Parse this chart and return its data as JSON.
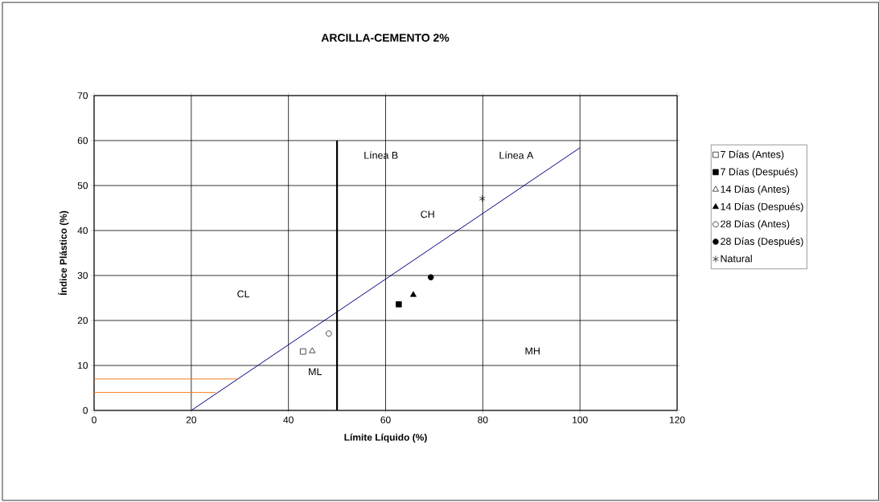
{
  "chart_data": {
    "type": "scatter",
    "title": "ARCILLA-CEMENTO 2%",
    "xlabel": "Límite Líquido (%)",
    "ylabel": "Índice Plástico (%)",
    "xlim": [
      0,
      120
    ],
    "ylim": [
      0,
      70
    ],
    "xticks": [
      0,
      20,
      40,
      60,
      80,
      100,
      120
    ],
    "yticks": [
      0,
      10,
      20,
      30,
      40,
      50,
      60,
      70
    ],
    "grid": true,
    "legend": "right",
    "series": [
      {
        "name": "7 Días (Antes)",
        "marker": "square",
        "color": "#ffffff",
        "x": [
          43.0
        ],
        "values": [
          13.1
        ]
      },
      {
        "name": "7 Días (Después)",
        "marker": "square",
        "color": "#000000",
        "x": [
          62.7
        ],
        "values": [
          23.6
        ]
      },
      {
        "name": "14 Días (Antes)",
        "marker": "triangle",
        "color": "#ffffff",
        "x": [
          44.9
        ],
        "values": [
          13.2
        ]
      },
      {
        "name": "14 Días (Después)",
        "marker": "triangle",
        "color": "#000000",
        "x": [
          65.7
        ],
        "values": [
          25.7
        ]
      },
      {
        "name": "28 Días (Antes)",
        "marker": "circle",
        "color": "#ffffff",
        "x": [
          48.3
        ],
        "values": [
          17.1
        ]
      },
      {
        "name": "28 Días (Después)",
        "marker": "circle",
        "color": "#000000",
        "x": [
          69.3
        ],
        "values": [
          29.6
        ]
      },
      {
        "name": "Natural",
        "marker": "cross",
        "color": "#000000",
        "x": [
          79.9
        ],
        "values": [
          47.1
        ]
      },
      {
        "type": "line",
        "color": "#000080",
        "x": [
          20,
          100
        ],
        "values": [
          0,
          58.4
        ]
      },
      {
        "type": "line",
        "color": "#000000",
        "x": [
          50,
          50
        ],
        "values": [
          0,
          60
        ]
      },
      {
        "type": "line",
        "color": "#f47f1f",
        "x": [
          0,
          29.5
        ],
        "values": [
          7,
          7
        ]
      },
      {
        "type": "line",
        "color": "#f47f1f",
        "x": [
          0,
          25
        ],
        "values": [
          4,
          4
        ]
      }
    ],
    "annotations": [
      "Línea A",
      "Línea B",
      "CL",
      "ML",
      "CH",
      "MH"
    ]
  }
}
